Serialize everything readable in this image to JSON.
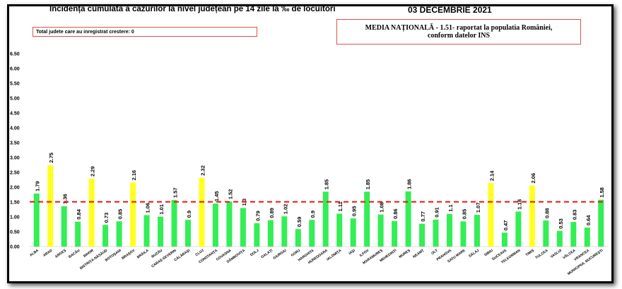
{
  "header": {
    "title": "Incidența cumulată a cazurilor la nivel județean pe 14 zile la ‰ de locuitori",
    "date": "03 DECEMBRIE 2021"
  },
  "notes": {
    "increase_box": "Total judete care au inregistrat crestere: 0",
    "national_line1": "MEDIA NAȚIONALĂ - 1.51- raportat la populatia României,",
    "national_line2": "conform datelor INS"
  },
  "colors": {
    "below": "#33ee55",
    "above": "#ffff22",
    "reference": "#ee1111"
  },
  "chart_data": {
    "type": "bar",
    "title": "Incidența cumulată a cazurilor la nivel județean pe 14 zile la ‰ de locuitori",
    "ylim": [
      0,
      6.5
    ],
    "yticks": [
      "0.00",
      "0.50",
      "1.00",
      "1.50",
      "2.00",
      "2.50",
      "3.00",
      "3.50",
      "4.00",
      "4.50",
      "5.00",
      "5.50",
      "6.00",
      "6.50"
    ],
    "reference_line": 1.51,
    "grid": false,
    "categories": [
      "ALBA",
      "ARAD",
      "ARGEȘ",
      "BACĂU",
      "BIHOR",
      "BISTRIȚA-NĂSĂUD",
      "BOTOȘANI",
      "BRAȘOV",
      "BRĂILA",
      "BUZĂU",
      "CARAȘ-SEVERIN",
      "CĂLĂRAȘI",
      "CLUJ",
      "CONSTANȚA",
      "COVASNA",
      "DÂMBOVIȚA",
      "DOLJ",
      "GALAȚI",
      "GIURGIU",
      "GORJ",
      "HARGHITA",
      "HUNEDOARA",
      "IALOMIȚA",
      "IAȘI",
      "ILFOV",
      "MARAMUREȘ",
      "MEHEDINȚI",
      "MUREȘ",
      "NEAMȚ",
      "OLT",
      "PRAHOVA",
      "SATU MARE",
      "SĂLAJ",
      "SIBIU",
      "SUCEAVA",
      "TELEORMAN",
      "TIMIȘ",
      "TULCEA",
      "VASLUI",
      "VÂLCEA",
      "VRANCEA",
      "MUNICIPIUL BUCUREȘTI"
    ],
    "values": [
      1.79,
      2.75,
      1.36,
      0.84,
      2.29,
      0.73,
      0.85,
      2.16,
      1.06,
      1.01,
      1.57,
      0.9,
      2.32,
      1.45,
      1.52,
      1.3,
      0.79,
      0.89,
      1.02,
      0.59,
      0.9,
      1.85,
      1.11,
      0.95,
      1.85,
      1.08,
      0.86,
      1.86,
      0.77,
      0.91,
      1.1,
      0.85,
      1.07,
      2.14,
      0.47,
      1.18,
      2.06,
      0.88,
      0.53,
      0.83,
      0.64,
      1.58
    ],
    "value_labels": [
      "1.79",
      "2.75",
      "1.36",
      "0.84",
      "2.29",
      "0.73",
      "0.85",
      "2.16",
      "1.06",
      "1.01",
      "1.57",
      "0.9",
      "2.32",
      "1.45",
      "1.52",
      "1.3",
      "0.79",
      "0.89",
      "1.02",
      "0.59",
      "0.9",
      "1.85",
      "1.11",
      "0.95",
      "1.85",
      "1.08",
      "0.86",
      "1.86",
      "0.77",
      "0.91",
      "1.1",
      "0.85",
      "1.07",
      "2.14",
      "0.47",
      "1.18",
      "2.06",
      "0.88",
      "0.53",
      "0.83",
      "0.64",
      "1.58"
    ],
    "highlighted": [
      "ARAD",
      "BIHOR",
      "BRAȘOV",
      "CLUJ",
      "SIBIU",
      "TIMIȘ"
    ]
  }
}
